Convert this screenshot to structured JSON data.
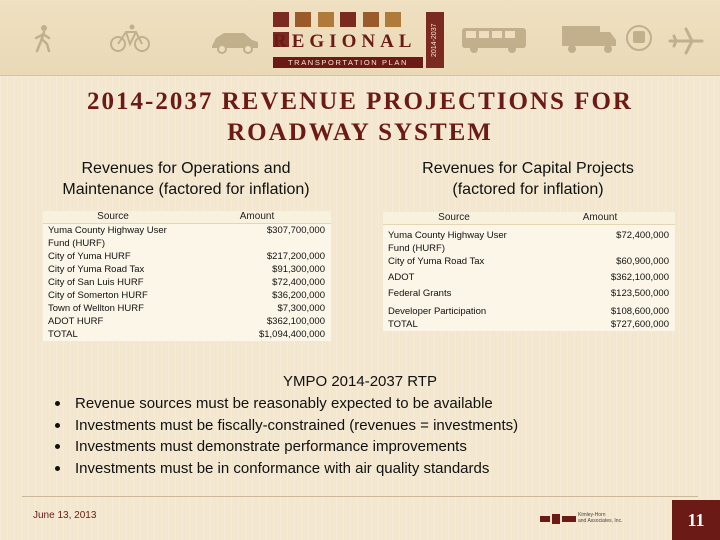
{
  "header": {
    "logo_word": "REGIONAL",
    "logo_subtitle": "TRANSPORTATION PLAN",
    "logo_year": "2014-2037",
    "icons": [
      "pedestrian-icon",
      "bicycle-icon",
      "car-icon",
      "bus-icon",
      "freight-truck-icon",
      "train-icon",
      "airplane-icon"
    ]
  },
  "title": {
    "line1": "2014-2037 REVENUE PROJECTIONS FOR",
    "line2": "ROADWAY SYSTEM"
  },
  "left_section": {
    "heading_line1": "Revenues for Operations and",
    "heading_line2": "Maintenance (factored for inflation)",
    "columns": [
      "Source",
      "Amount"
    ],
    "rows": [
      {
        "source": "Yuma County Highway User",
        "amount": "$307,700,000"
      },
      {
        "source": "Fund (HURF)",
        "amount": ""
      },
      {
        "source": "City of Yuma HURF",
        "amount": "$217,200,000"
      },
      {
        "source": "City of Yuma Road Tax",
        "amount": "$91,300,000"
      },
      {
        "source": "City of San Luis HURF",
        "amount": "$72,400,000"
      },
      {
        "source": "City of Somerton HURF",
        "amount": "$36,200,000"
      },
      {
        "source": "Town of Wellton HURF",
        "amount": "$7,300,000"
      },
      {
        "source": "ADOT HURF",
        "amount": "$362,100,000"
      },
      {
        "source": "TOTAL",
        "amount": "$1,094,400,000"
      }
    ]
  },
  "right_section": {
    "heading_line1": "Revenues for Capital Projects",
    "heading_line2": "(factored for inflation)",
    "columns": [
      "Source",
      "Amount"
    ],
    "rows": [
      {
        "source": "Yuma County Highway User",
        "amount": "$72,400,000"
      },
      {
        "source": "Fund (HURF)",
        "amount": ""
      },
      {
        "source": "City of Yuma Road Tax",
        "amount": "$60,900,000"
      },
      {
        "source": "ADOT",
        "amount": "$362,100,000"
      },
      {
        "source": "Federal Grants",
        "amount": "$123,500,000"
      },
      {
        "source": "Developer Participation",
        "amount": "$108,600,000"
      },
      {
        "source": "TOTAL",
        "amount": "$727,600,000"
      }
    ]
  },
  "notes": {
    "heading": "YMPO 2014-2037 RTP",
    "bullets": [
      "Revenue sources must be reasonably expected to be available",
      "Investments must be fiscally-constrained (revenues = investments)",
      "Investments must demonstrate performance improvements",
      "Investments must be in conformance with air quality standards"
    ]
  },
  "footer": {
    "date": "June 13, 2013",
    "company_line1": "Kimley-Horn",
    "company_line2": "and Associates, Inc.",
    "page_number": "11"
  },
  "colors": {
    "brand": "#6b1a16",
    "background": "#f3e7cf"
  }
}
